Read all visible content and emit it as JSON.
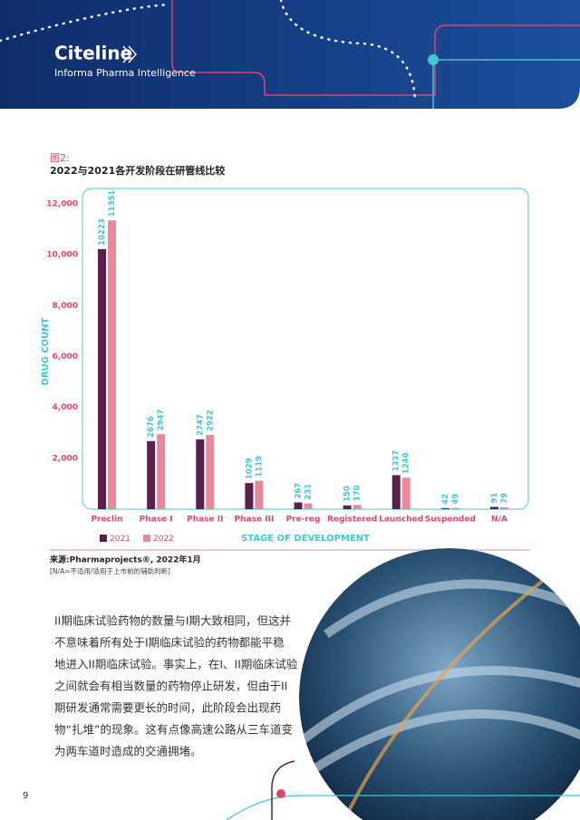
{
  "header": {
    "brand": "Citeline",
    "subtitle": "Informa Pharma Intelligence"
  },
  "chart_data": {
    "type": "bar",
    "figure_label": "图2:",
    "title": "2022与2021各开发阶段在研管线比较",
    "categories": [
      "Preclin",
      "Phase I",
      "Phase II",
      "Phase III",
      "Pre-reg",
      "Registered",
      "Launched",
      "Suspended",
      "N/A"
    ],
    "series": [
      {
        "name": "2021",
        "color": "#5a1f4b",
        "values": [
          10223,
          2676,
          2747,
          1029,
          267,
          150,
          1337,
          42,
          91
        ]
      },
      {
        "name": "2022",
        "color": "#e8899b",
        "values": [
          11351,
          2947,
          2922,
          1119,
          231,
          170,
          1240,
          49,
          79
        ]
      }
    ],
    "ylim": [
      0,
      12000
    ],
    "yticks": [
      {
        "value": 2000,
        "label": "2,000"
      },
      {
        "value": 4000,
        "label": "4,000"
      },
      {
        "value": 6000,
        "label": "6,000"
      },
      {
        "value": 8000,
        "label": "8,000"
      },
      {
        "value": 10000,
        "label": "10,000"
      },
      {
        "value": 12000,
        "label": "12,000"
      }
    ],
    "y_label": "DRUG COUNT",
    "x_label": "STAGE OF DEVELOPMENT",
    "grid": false
  },
  "source": "来源:Pharmaprojects®, 2022年1月",
  "note": "[N/A=不适用/适用于上市前的辅助判断]",
  "paragraph": [
    "II期临床试验药物的数量与I期大致相同，但这并",
    "不意味着所有处于I期临床试验的药物都能平稳",
    "地进入II期临床试验。事实上，在I、II期临床试验",
    "之间就会有相当数量的药物停止研发，但由于II",
    "期研发通常需要更长的时间，此阶段会出现药",
    "物“扎堆”的现象。这有点像高速公路从三车道变",
    "为两车道时造成的交通拥堵。"
  ],
  "page_number": "9"
}
